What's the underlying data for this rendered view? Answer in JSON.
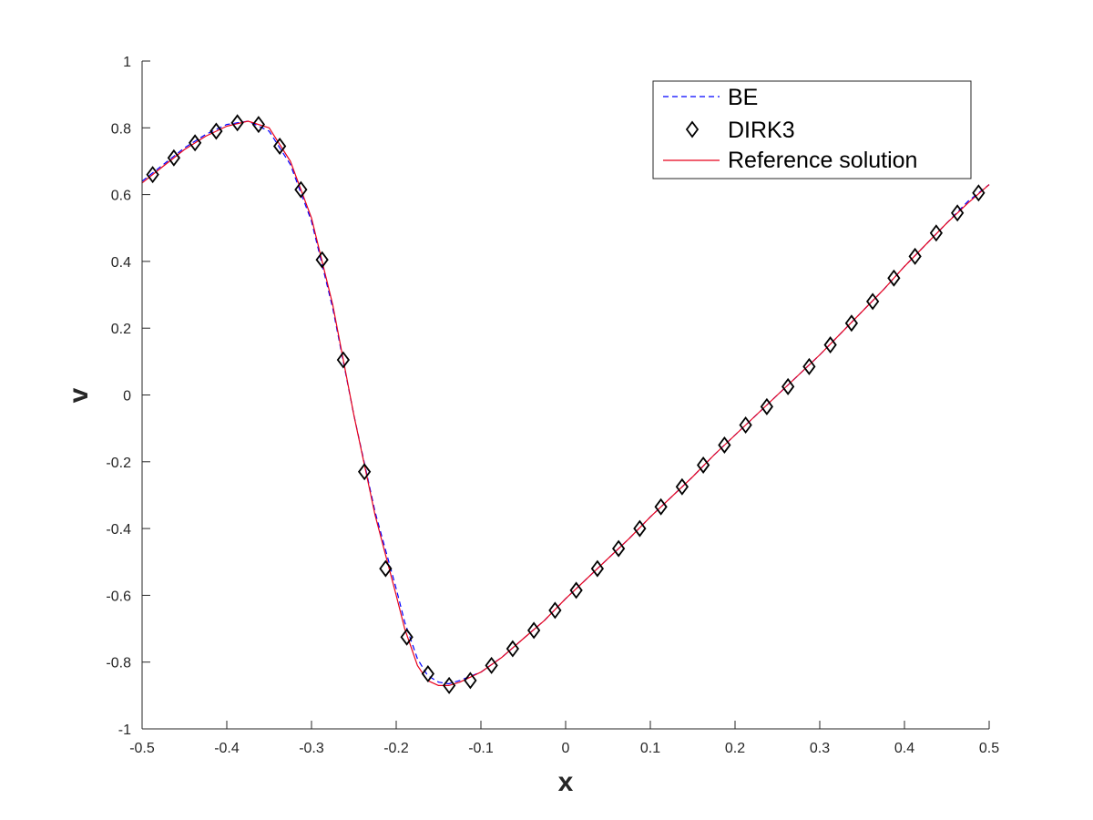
{
  "chart_data": {
    "type": "line",
    "title": "",
    "xlabel": "x",
    "ylabel": "v",
    "xlim": [
      -0.5,
      0.5
    ],
    "ylim": [
      -1,
      1
    ],
    "xticks": [
      "-0.5",
      "-0.4",
      "-0.3",
      "-0.2",
      "-0.1",
      "0",
      "0.1",
      "0.2",
      "0.3",
      "0.4",
      "0.5"
    ],
    "yticks": [
      "-1",
      "-0.8",
      "-0.6",
      "-0.4",
      "-0.2",
      "0",
      "0.2",
      "0.4",
      "0.6",
      "0.8",
      "1"
    ],
    "grid": false,
    "legend_position": "top-right",
    "series": [
      {
        "name": "BE",
        "style": "dashed",
        "color": "#0000ff",
        "x": [
          -0.5,
          -0.475,
          -0.45,
          -0.425,
          -0.4,
          -0.375,
          -0.35,
          -0.325,
          -0.3,
          -0.275,
          -0.25,
          -0.225,
          -0.2,
          -0.19,
          -0.175,
          -0.163,
          -0.15,
          -0.138,
          -0.125,
          -0.1,
          -0.075,
          -0.05,
          -0.025,
          0,
          0.025,
          0.05,
          0.075,
          0.1,
          0.125,
          0.15,
          0.175,
          0.2,
          0.225,
          0.25,
          0.275,
          0.3,
          0.325,
          0.35,
          0.375,
          0.4,
          0.425,
          0.45,
          0.475,
          0.5
        ],
        "y": [
          0.64,
          0.69,
          0.74,
          0.78,
          0.81,
          0.82,
          0.79,
          0.69,
          0.52,
          0.26,
          -0.06,
          -0.35,
          -0.58,
          -0.68,
          -0.79,
          -0.84,
          -0.86,
          -0.865,
          -0.855,
          -0.83,
          -0.785,
          -0.73,
          -0.675,
          -0.61,
          -0.55,
          -0.49,
          -0.43,
          -0.365,
          -0.305,
          -0.245,
          -0.18,
          -0.12,
          -0.06,
          0.0,
          0.06,
          0.12,
          0.185,
          0.25,
          0.315,
          0.385,
          0.45,
          0.515,
          0.58,
          0.63
        ]
      },
      {
        "name": "DIRK3",
        "style": "markers",
        "marker": "diamond",
        "color": "#000000",
        "x": [
          -0.4875,
          -0.4625,
          -0.4375,
          -0.4125,
          -0.3875,
          -0.3625,
          -0.3375,
          -0.3125,
          -0.2875,
          -0.2625,
          -0.2375,
          -0.2125,
          -0.1875,
          -0.1625,
          -0.1375,
          -0.1125,
          -0.0875,
          -0.0625,
          -0.0375,
          -0.0125,
          0.0125,
          0.0375,
          0.0625,
          0.0875,
          0.1125,
          0.1375,
          0.1625,
          0.1875,
          0.2125,
          0.2375,
          0.2625,
          0.2875,
          0.3125,
          0.3375,
          0.3625,
          0.3875,
          0.4125,
          0.4375,
          0.4625,
          0.4875
        ],
        "y": [
          0.66,
          0.71,
          0.755,
          0.79,
          0.815,
          0.81,
          0.745,
          0.615,
          0.405,
          0.105,
          -0.23,
          -0.52,
          -0.725,
          -0.835,
          -0.87,
          -0.855,
          -0.81,
          -0.76,
          -0.705,
          -0.645,
          -0.585,
          -0.52,
          -0.46,
          -0.4,
          -0.335,
          -0.275,
          -0.21,
          -0.15,
          -0.09,
          -0.035,
          0.025,
          0.085,
          0.15,
          0.215,
          0.28,
          0.35,
          0.415,
          0.485,
          0.545,
          0.605
        ]
      },
      {
        "name": "Reference solution",
        "style": "solid",
        "color": "#e8001a",
        "x": [
          -0.5,
          -0.475,
          -0.45,
          -0.425,
          -0.4,
          -0.375,
          -0.35,
          -0.325,
          -0.3,
          -0.275,
          -0.25,
          -0.225,
          -0.2,
          -0.19,
          -0.175,
          -0.163,
          -0.15,
          -0.138,
          -0.125,
          -0.1,
          -0.075,
          -0.05,
          -0.025,
          0,
          0.025,
          0.05,
          0.075,
          0.1,
          0.125,
          0.15,
          0.175,
          0.2,
          0.225,
          0.25,
          0.275,
          0.3,
          0.325,
          0.35,
          0.375,
          0.4,
          0.425,
          0.45,
          0.475,
          0.5
        ],
        "y": [
          0.635,
          0.685,
          0.735,
          0.775,
          0.805,
          0.82,
          0.8,
          0.7,
          0.53,
          0.27,
          -0.06,
          -0.36,
          -0.6,
          -0.7,
          -0.81,
          -0.855,
          -0.87,
          -0.87,
          -0.86,
          -0.83,
          -0.785,
          -0.73,
          -0.675,
          -0.61,
          -0.55,
          -0.49,
          -0.43,
          -0.365,
          -0.305,
          -0.245,
          -0.18,
          -0.12,
          -0.06,
          0.0,
          0.06,
          0.12,
          0.185,
          0.25,
          0.315,
          0.385,
          0.45,
          0.515,
          0.575,
          0.63
        ]
      }
    ]
  }
}
